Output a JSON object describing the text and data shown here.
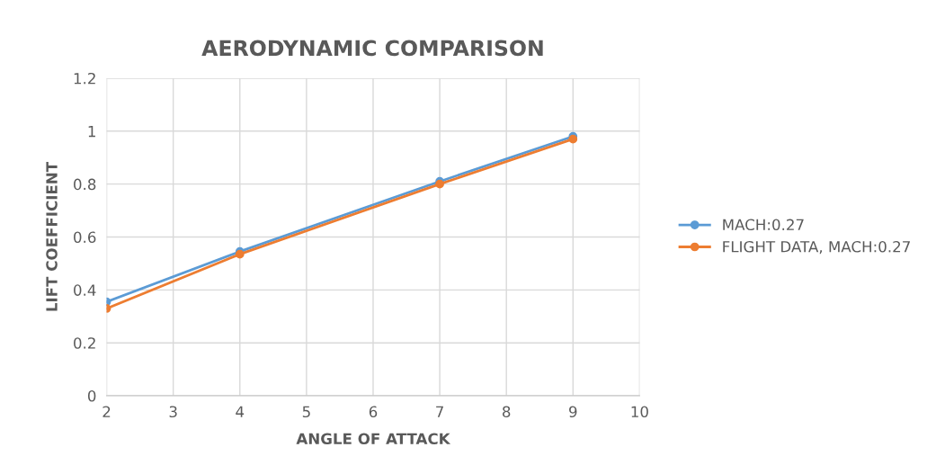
{
  "chart_data": {
    "type": "line",
    "title": "AERODYNAMIC COMPARISON",
    "xlabel": "ANGLE OF ATTACK",
    "ylabel": "LIFT COEFFICIENT",
    "x": [
      2,
      4,
      7,
      9
    ],
    "series": [
      {
        "name": "MACH:0.27",
        "color": "#5b9bd5",
        "values": [
          0.355,
          0.545,
          0.81,
          0.98
        ]
      },
      {
        "name": "FLIGHT DATA, MACH:0.27",
        "color": "#ed7d31",
        "values": [
          0.33,
          0.535,
          0.8,
          0.97
        ]
      }
    ],
    "xlim": [
      2,
      10
    ],
    "xticks": [
      2,
      3,
      4,
      5,
      6,
      7,
      8,
      9,
      10
    ],
    "ylim": [
      0,
      1.2
    ],
    "yticks": [
      0,
      0.2,
      0.4,
      0.6,
      0.8,
      1,
      1.2
    ],
    "grid": true,
    "legend": "right",
    "marker": "circle",
    "line_style": "solid"
  }
}
